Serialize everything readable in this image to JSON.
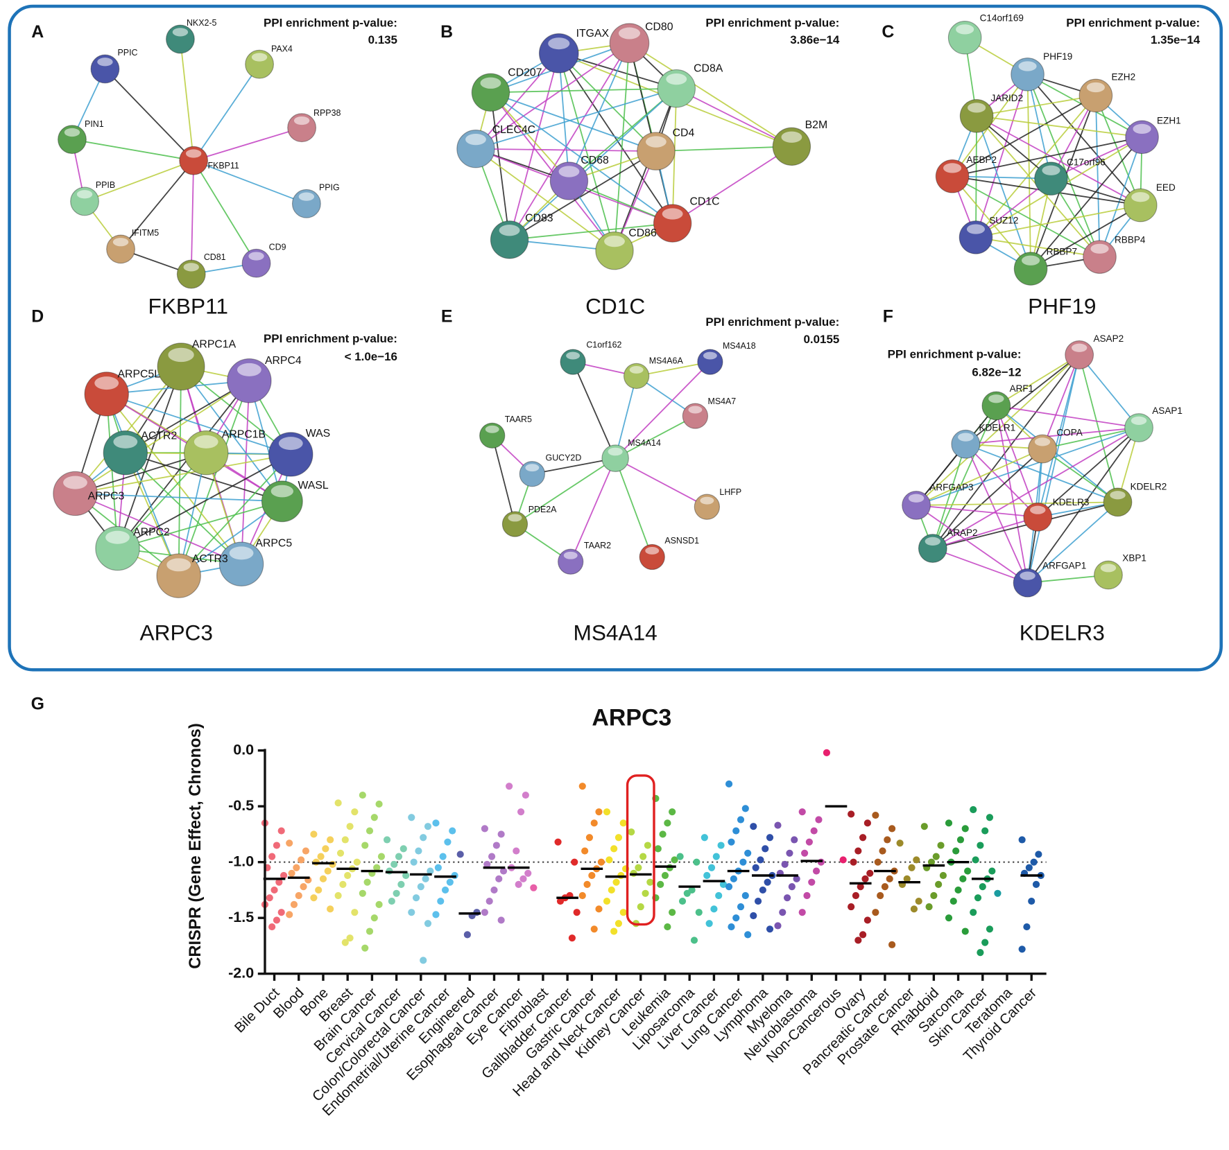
{
  "panels": [
    {
      "letter": "A",
      "pvalue_label": "PPI enrichment p-value:",
      "pvalue": "0.135",
      "gene": "FKBP11",
      "nodes": [
        "FKBP11",
        "NKX2-5",
        "PAX4",
        "PPIC",
        "RPP38",
        "PIN1",
        "PPIB",
        "PPIG",
        "IFITM5",
        "CD81",
        "CD9"
      ]
    },
    {
      "letter": "B",
      "pvalue_label": "PPI enrichment p-value:",
      "pvalue": "3.86e−14",
      "gene": "CD1C",
      "nodes": [
        "ITGAX",
        "CD80",
        "CD207",
        "CD8A",
        "CLEC4C",
        "CD4",
        "B2M",
        "CD68",
        "CD1C",
        "CD83",
        "CD86"
      ]
    },
    {
      "letter": "C",
      "pvalue_label": "PPI enrichment p-value:",
      "pvalue": "1.35e−14",
      "gene": "PHF19",
      "nodes": [
        "C14orf169",
        "PHF19",
        "EZH2",
        "JARID2",
        "EZH1",
        "AEBP2",
        "C17orf96",
        "EED",
        "SUZ12",
        "RBBP4",
        "RBBP7"
      ]
    },
    {
      "letter": "D",
      "pvalue_label": "PPI enrichment p-value:",
      "pvalue": "< 1.0e−16",
      "gene": "ARPC3",
      "nodes": [
        "ARPC1A",
        "ARPC4",
        "ARPC5L",
        "ACTR2",
        "ARPC1B",
        "WAS",
        "ARPC3",
        "WASL",
        "ARPC2",
        "ARPC5",
        "ACTR3"
      ]
    },
    {
      "letter": "E",
      "pvalue_label": "PPI enrichment p-value:",
      "pvalue": "0.0155",
      "gene": "MS4A14",
      "nodes": [
        "C1orf162",
        "MS4A6A",
        "MS4A18",
        "MS4A7",
        "TAAR5",
        "MS4A14",
        "GUCY2D",
        "LHFP",
        "PDE2A",
        "TAAR2",
        "ASNSD1"
      ]
    },
    {
      "letter": "F",
      "pvalue_label": "PPI enrichment p-value:",
      "pvalue": "6.82e−12",
      "gene": "KDELR3",
      "nodes": [
        "ASAP2",
        "ARF1",
        "ASAP1",
        "KDELR1",
        "COPA",
        "KDELR2",
        "ARFGAP3",
        "KDELR3",
        "ARAP2",
        "XBP1",
        "ARFGAP1"
      ]
    }
  ],
  "chart_data": {
    "type": "strip",
    "panel_label": "G",
    "title": "ARPC3",
    "y_label": "CRISPR (Gene Effect, Chronos)",
    "categories": [
      "Bile Duct",
      "Blood",
      "Bone",
      "Breast",
      "Brain Cancer",
      "Cervical Cancer",
      "Colon/Colorectal Cancer",
      "Endometrial/Uterine Cancer",
      "Engineered",
      "Esophageal Cancer",
      "Eye Cancer",
      "Fibroblast",
      "Gallbladder Cancer",
      "Gastric Cancer",
      "Head and Neck Cancer",
      "Kidney Cancer",
      "Leukemia",
      "Liposarcoma",
      "Liver Cancer",
      "Lung Cancer",
      "Lymphoma",
      "Myeloma",
      "Neuroblastoma",
      "Non-Cancerous",
      "Ovary",
      "Pancreatic Cancer",
      "Prostate Cancer",
      "Rhabdoid",
      "Sarcoma",
      "Skin Cancer",
      "Teratoma",
      "Thyroid Cancer"
    ],
    "colors": [
      "#f06a78",
      "#f7a566",
      "#f5d05c",
      "#e3e36a",
      "#a6d86a",
      "#7ecfb0",
      "#82cbe0",
      "#5cc0ec",
      "#5a5ea8",
      "#b07ac7",
      "#d27ecb",
      "#e85fa8",
      "#e02a2a",
      "#f28a2a",
      "#f2e02a",
      "#b5d845",
      "#5cb845",
      "#4cc08a",
      "#42c2d8",
      "#2e8ed6",
      "#2f4fa8",
      "#7a55b0",
      "#c24aa6",
      "#e8206e",
      "#a81e26",
      "#a85a1e",
      "#9c8a2a",
      "#6a9c2a",
      "#2a9c3a",
      "#1a9c5a",
      "#1a9ca0",
      "#1e5aa8"
    ],
    "medians": [
      -1.15,
      -1.14,
      -1.01,
      -1.06,
      -1.08,
      -1.09,
      -1.11,
      -1.13,
      -1.46,
      -1.05,
      -1.05,
      null,
      -1.32,
      -1.06,
      -1.13,
      -1.11,
      -1.04,
      -1.22,
      -1.17,
      -1.08,
      -1.12,
      -1.12,
      -0.99,
      -0.5,
      -1.19,
      -1.08,
      -1.18,
      -1.03,
      -1.0,
      -1.15,
      null,
      -1.12
    ],
    "points": [
      [
        -0.65,
        -0.72,
        -0.85,
        -0.95,
        -1.05,
        -1.12,
        -1.18,
        -1.25,
        -1.32,
        -1.38,
        -1.45,
        -1.52,
        -1.58
      ],
      [
        -0.83,
        -0.9,
        -0.98,
        -1.05,
        -1.1,
        -1.16,
        -1.22,
        -1.3,
        -1.38,
        -1.47
      ],
      [
        -0.75,
        -0.8,
        -0.88,
        -0.95,
        -1.0,
        -1.02,
        -1.08,
        -1.15,
        -1.25,
        -1.32,
        -1.42
      ],
      [
        -0.47,
        -0.55,
        -0.68,
        -0.8,
        -0.92,
        -1.0,
        -1.06,
        -1.12,
        -1.2,
        -1.3,
        -1.45,
        -1.68,
        -1.72
      ],
      [
        -0.4,
        -0.48,
        -0.6,
        -0.72,
        -0.85,
        -0.95,
        -1.05,
        -1.1,
        -1.18,
        -1.28,
        -1.38,
        -1.5,
        -1.62,
        -1.77
      ],
      [
        -0.8,
        -0.88,
        -0.95,
        -1.02,
        -1.08,
        -1.12,
        -1.2,
        -1.28,
        -1.35
      ],
      [
        -0.6,
        -0.68,
        -0.78,
        -0.9,
        -1.0,
        -1.08,
        -1.15,
        -1.22,
        -1.32,
        -1.45,
        -1.55,
        -1.88
      ],
      [
        -0.65,
        -0.72,
        -0.82,
        -0.95,
        -1.05,
        -1.12,
        -1.18,
        -1.25,
        -1.35,
        -1.47
      ],
      [
        -0.93,
        -1.45,
        -1.48,
        -1.65
      ],
      [
        -0.7,
        -0.75,
        -0.85,
        -0.95,
        -1.02,
        -1.08,
        -1.15,
        -1.25,
        -1.35,
        -1.45,
        -1.52
      ],
      [
        -0.32,
        -0.4,
        -0.55,
        -0.9,
        -1.05,
        -1.1,
        -1.15,
        -1.2
      ],
      [
        -1.23
      ],
      [
        -0.82,
        -1.0,
        -1.3,
        -1.32,
        -1.35,
        -1.45,
        -1.68
      ],
      [
        -0.32,
        -0.55,
        -0.65,
        -0.78,
        -0.9,
        -1.0,
        -1.06,
        -1.12,
        -1.2,
        -1.3,
        -1.42,
        -1.6
      ],
      [
        -0.55,
        -0.65,
        -0.78,
        -0.88,
        -0.98,
        -1.06,
        -1.12,
        -1.18,
        -1.25,
        -1.35,
        -1.45,
        -1.55,
        -1.62
      ],
      [
        -0.73,
        -0.85,
        -0.95,
        -1.05,
        -1.1,
        -1.18,
        -1.28,
        -1.4,
        -1.55
      ],
      [
        -0.43,
        -0.55,
        -0.65,
        -0.75,
        -0.88,
        -0.98,
        -1.05,
        -1.12,
        -1.2,
        -1.32,
        -1.45,
        -1.58
      ],
      [
        -0.95,
        -1.0,
        -1.25,
        -1.28,
        -1.35,
        -1.45,
        -1.7
      ],
      [
        -0.78,
        -0.85,
        -0.95,
        -1.05,
        -1.12,
        -1.2,
        -1.3,
        -1.42,
        -1.55
      ],
      [
        -0.3,
        -0.52,
        -0.62,
        -0.72,
        -0.82,
        -0.92,
        -1.0,
        -1.08,
        -1.15,
        -1.22,
        -1.3,
        -1.4,
        -1.5,
        -1.58,
        -1.65
      ],
      [
        -0.68,
        -0.78,
        -0.88,
        -0.98,
        -1.05,
        -1.12,
        -1.18,
        -1.25,
        -1.35,
        -1.48,
        -1.6
      ],
      [
        -0.67,
        -0.8,
        -0.92,
        -1.02,
        -1.1,
        -1.15,
        -1.22,
        -1.32,
        -1.45,
        -1.57
      ],
      [
        -0.55,
        -0.62,
        -0.72,
        -0.82,
        -0.92,
        -1.0,
        -1.08,
        -1.18,
        -1.3,
        -1.45
      ],
      [
        -0.02,
        -0.98
      ],
      [
        -0.57,
        -0.65,
        -0.78,
        -0.9,
        -1.0,
        -1.1,
        -1.15,
        -1.22,
        -1.3,
        -1.4,
        -1.52,
        -1.65,
        -1.7
      ],
      [
        -0.58,
        -0.7,
        -0.8,
        -0.9,
        -1.0,
        -1.08,
        -1.15,
        -1.22,
        -1.3,
        -1.45,
        -1.74
      ],
      [
        -0.83,
        -0.98,
        -1.05,
        -1.15,
        -1.2,
        -1.35,
        -1.42
      ],
      [
        -0.68,
        -0.85,
        -0.95,
        -1.0,
        -1.05,
        -1.12,
        -1.2,
        -1.3,
        -1.4
      ],
      [
        -0.65,
        -0.7,
        -0.8,
        -0.9,
        -1.0,
        -1.08,
        -1.15,
        -1.25,
        -1.35,
        -1.5,
        -1.62
      ],
      [
        -0.53,
        -0.6,
        -0.72,
        -0.85,
        -0.98,
        -1.08,
        -1.15,
        -1.22,
        -1.32,
        -1.45,
        -1.6,
        -1.72,
        -1.81
      ],
      [
        -1.28
      ],
      [
        -0.8,
        -0.93,
        -1.0,
        -1.05,
        -1.1,
        -1.12,
        -1.2,
        -1.35,
        -1.58,
        -1.78
      ]
    ],
    "ylim": [
      -2,
      0
    ],
    "yticks": [
      {
        "value": 0,
        "label": "0.0"
      },
      {
        "value": -0.5,
        "label": "-0.5"
      },
      {
        "value": -1,
        "label": "-1.0"
      },
      {
        "value": -1.5,
        "label": "-1.5"
      },
      {
        "value": -2,
        "label": "-2.0"
      }
    ],
    "reference_line": -1,
    "highlight_category": "Kidney Cancer"
  }
}
